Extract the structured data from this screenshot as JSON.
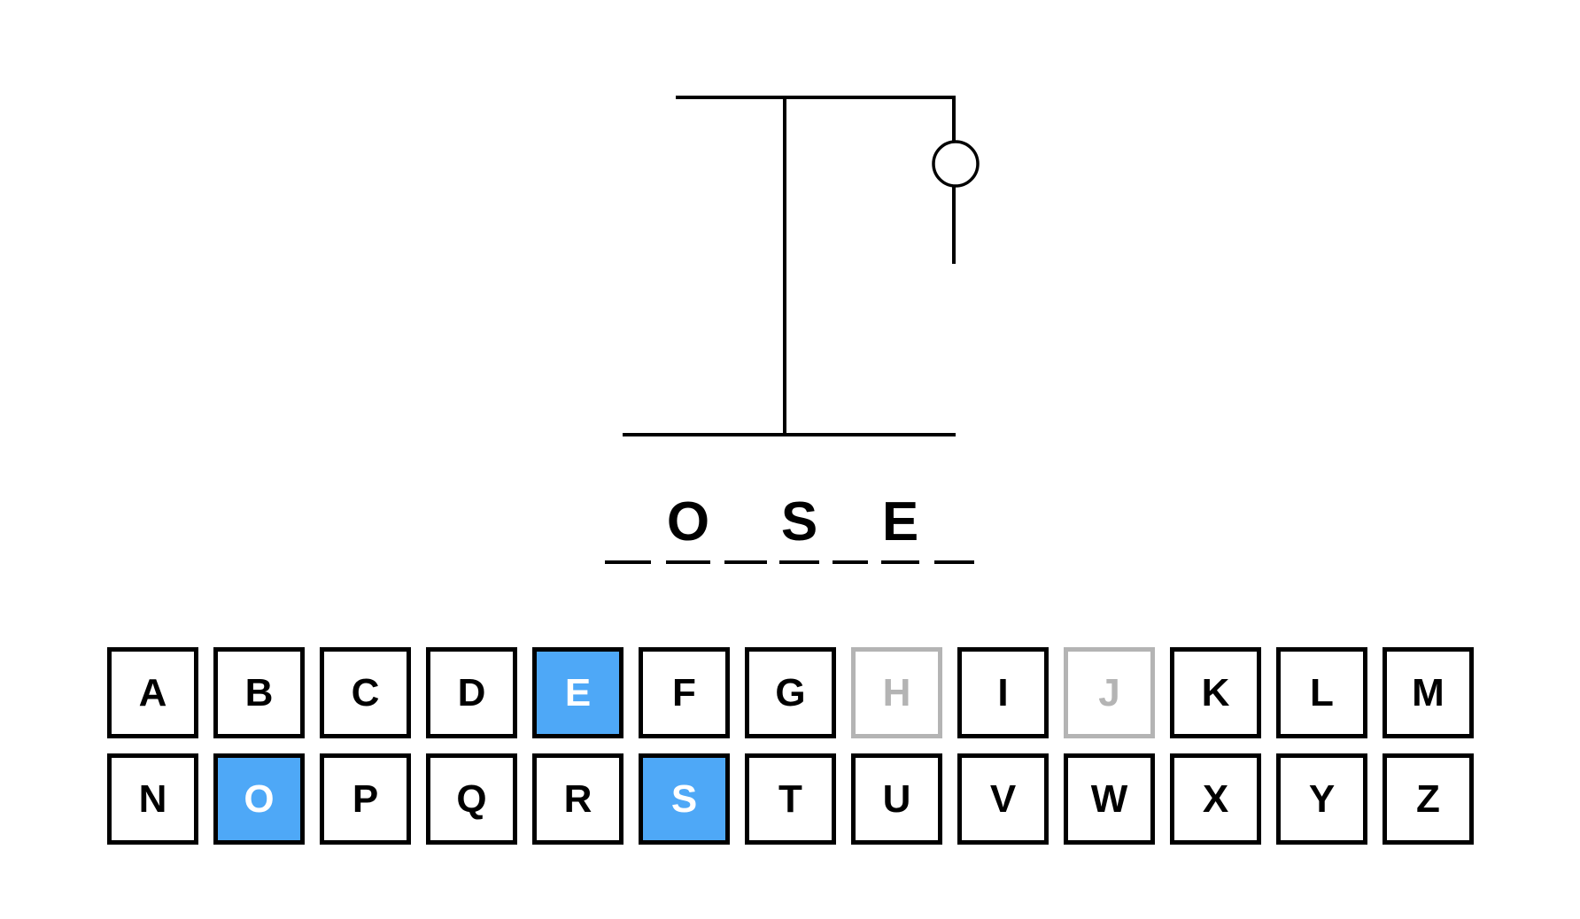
{
  "game": {
    "wrong_guess_count": 2,
    "word_slots": [
      "",
      "O",
      "",
      "S",
      "",
      "E",
      ""
    ]
  },
  "keyboard": {
    "keys": [
      {
        "letter": "A",
        "state": "unused"
      },
      {
        "letter": "B",
        "state": "unused"
      },
      {
        "letter": "C",
        "state": "unused"
      },
      {
        "letter": "D",
        "state": "unused"
      },
      {
        "letter": "E",
        "state": "correct"
      },
      {
        "letter": "F",
        "state": "unused"
      },
      {
        "letter": "G",
        "state": "unused"
      },
      {
        "letter": "H",
        "state": "wrong"
      },
      {
        "letter": "I",
        "state": "unused"
      },
      {
        "letter": "J",
        "state": "wrong"
      },
      {
        "letter": "K",
        "state": "unused"
      },
      {
        "letter": "L",
        "state": "unused"
      },
      {
        "letter": "M",
        "state": "unused"
      },
      {
        "letter": "N",
        "state": "unused"
      },
      {
        "letter": "O",
        "state": "correct"
      },
      {
        "letter": "P",
        "state": "unused"
      },
      {
        "letter": "Q",
        "state": "unused"
      },
      {
        "letter": "R",
        "state": "unused"
      },
      {
        "letter": "S",
        "state": "correct"
      },
      {
        "letter": "T",
        "state": "unused"
      },
      {
        "letter": "U",
        "state": "unused"
      },
      {
        "letter": "V",
        "state": "unused"
      },
      {
        "letter": "W",
        "state": "unused"
      },
      {
        "letter": "X",
        "state": "unused"
      },
      {
        "letter": "Y",
        "state": "unused"
      },
      {
        "letter": "Z",
        "state": "unused"
      }
    ]
  },
  "colors": {
    "correct_key_bg": "#4ea8f7",
    "wrong_key": "#b4b4b4",
    "ink": "#000000"
  }
}
